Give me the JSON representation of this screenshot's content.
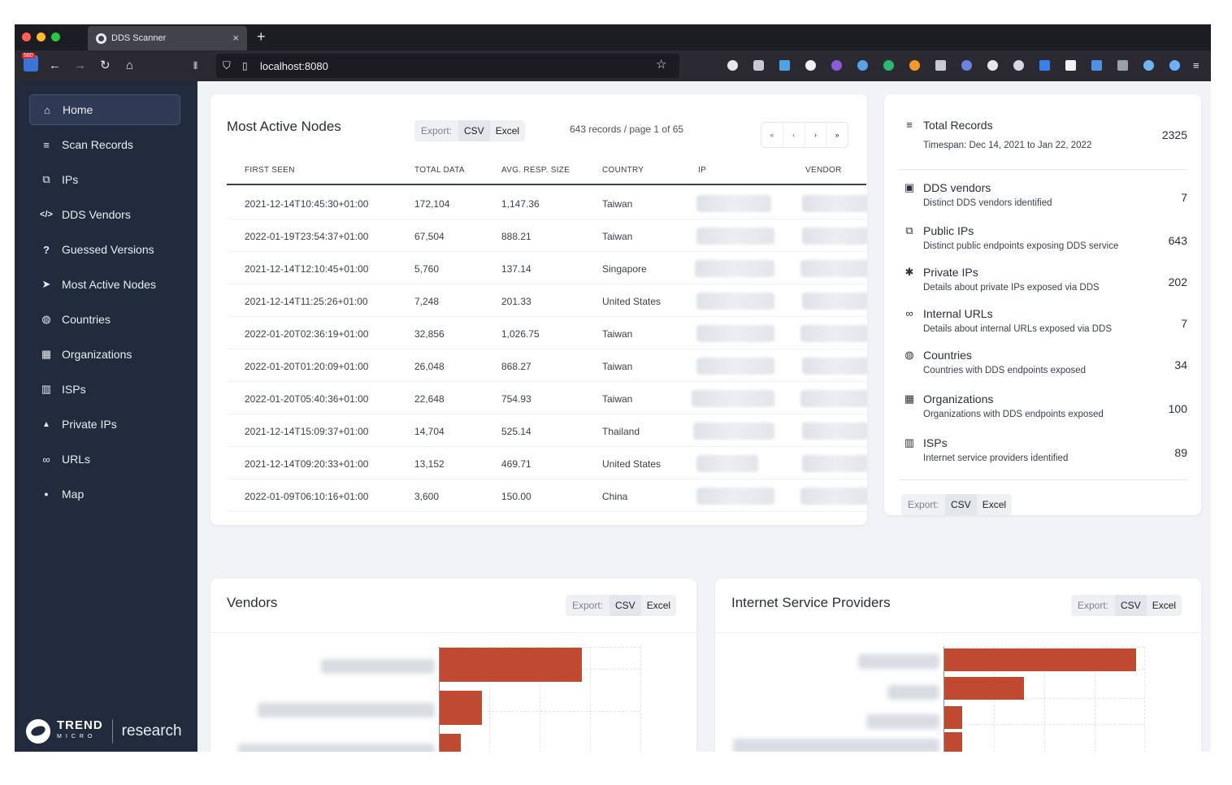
{
  "browser": {
    "tab_title": "DDS Scanner",
    "tab_close": "×",
    "new_tab": "+",
    "url": "localhost:8080",
    "badge": "580"
  },
  "sidebar": {
    "items": [
      {
        "label": "Home",
        "icon": "home-icon",
        "glyph": "⌂"
      },
      {
        "label": "Scan Records",
        "icon": "database-icon",
        "glyph": "≡"
      },
      {
        "label": "IPs",
        "icon": "network-icon",
        "glyph": "⧉"
      },
      {
        "label": "DDS Vendors",
        "icon": "code-icon",
        "glyph": "</>"
      },
      {
        "label": "Guessed Versions",
        "icon": "question-icon",
        "glyph": "?"
      },
      {
        "label": "Most Active Nodes",
        "icon": "rocket-icon",
        "glyph": "➤"
      },
      {
        "label": "Countries",
        "icon": "globe-icon",
        "glyph": "◍"
      },
      {
        "label": "Organizations",
        "icon": "building-icon",
        "glyph": "▦"
      },
      {
        "label": "ISPs",
        "icon": "industry-icon",
        "glyph": "▥"
      },
      {
        "label": "Private IPs",
        "icon": "lock-icon",
        "glyph": "▲"
      },
      {
        "label": "URLs",
        "icon": "link-icon",
        "glyph": "∞"
      },
      {
        "label": "Map",
        "icon": "map-pin-icon",
        "glyph": "●"
      }
    ],
    "logo": {
      "trend": "TREND",
      "micro": "MICRO",
      "research": "research"
    }
  },
  "nodes": {
    "title": "Most Active Nodes",
    "export_label": "Export:",
    "csv": "CSV",
    "excel": "Excel",
    "records": "643 records / page 1 of 65",
    "pager": [
      "«",
      "‹",
      "›",
      "»"
    ],
    "columns": [
      "FIRST SEEN",
      "TOTAL DATA",
      "AVG. RESP. SIZE",
      "COUNTRY",
      "IP",
      "VENDOR"
    ],
    "rows": [
      [
        "2021-12-14T10:45:30+01:00",
        "172,104",
        "1,147.36",
        "Taiwan"
      ],
      [
        "2022-01-19T23:54:37+01:00",
        "67,504",
        "888.21",
        "Taiwan"
      ],
      [
        "2021-12-14T12:10:45+01:00",
        "5,760",
        "137.14",
        "Singapore"
      ],
      [
        "2021-12-14T11:25:26+01:00",
        "7,248",
        "201.33",
        "United States"
      ],
      [
        "2022-01-20T02:36:19+01:00",
        "32,856",
        "1,026.75",
        "Taiwan"
      ],
      [
        "2022-01-20T01:20:09+01:00",
        "26,048",
        "868.27",
        "Taiwan"
      ],
      [
        "2022-01-20T05:40:36+01:00",
        "22,648",
        "754.93",
        "Taiwan"
      ],
      [
        "2021-12-14T15:09:37+01:00",
        "14,704",
        "525.14",
        "Thailand"
      ],
      [
        "2021-12-14T09:20:33+01:00",
        "13,152",
        "469.71",
        "United States"
      ],
      [
        "2022-01-09T06:10:16+01:00",
        "3,600",
        "150.00",
        "China"
      ]
    ]
  },
  "stats": {
    "items": [
      {
        "icon": "database-icon",
        "glyph": "≡",
        "title": "Total Records",
        "desc": "Timespan: Dec 14, 2021 to Jan 22, 2022",
        "value": "2325"
      },
      {
        "icon": "dev-icon",
        "glyph": "▣",
        "title": "DDS vendors",
        "desc": "Distinct DDS vendors identified",
        "value": "7"
      },
      {
        "icon": "network-icon",
        "glyph": "⧉",
        "title": "Public IPs",
        "desc": "Distinct public endpoints exposing DDS service",
        "value": "643"
      },
      {
        "icon": "spy-icon",
        "glyph": "✱",
        "title": "Private IPs",
        "desc": "Details about private IPs exposed via DDS",
        "value": "202"
      },
      {
        "icon": "link-icon",
        "glyph": "∞",
        "title": "Internal URLs",
        "desc": "Details about internal URLs exposed via DDS",
        "value": "7"
      },
      {
        "icon": "globe-icon",
        "glyph": "◍",
        "title": "Countries",
        "desc": "Countries with DDS endpoints exposed",
        "value": "34"
      },
      {
        "icon": "building-icon",
        "glyph": "▦",
        "title": "Organizations",
        "desc": "Organizations with DDS endpoints exposed",
        "value": "100"
      },
      {
        "icon": "industry-icon",
        "glyph": "▥",
        "title": "ISPs",
        "desc": "Internet service providers identified",
        "value": "89"
      }
    ],
    "export_label": "Export:",
    "csv": "CSV",
    "excel": "Excel"
  },
  "vendors": {
    "title": "Vendors",
    "export_label": "Export:",
    "csv": "CSV",
    "excel": "Excel"
  },
  "isps": {
    "title": "Internet Service Providers",
    "export_label": "Export:",
    "csv": "CSV",
    "excel": "Excel"
  },
  "chart_data": [
    {
      "type": "bar",
      "title": "Vendors",
      "orientation": "horizontal",
      "categories": [
        "",
        "",
        ""
      ],
      "values": [
        0.94,
        0.28,
        0.14
      ],
      "value_scale": "fraction of axis",
      "grid": true
    },
    {
      "type": "bar",
      "title": "Internet Service Providers",
      "orientation": "horizontal",
      "categories": [
        "",
        "",
        "",
        ""
      ],
      "values": [
        0.96,
        0.4,
        0.09,
        0.09
      ],
      "value_scale": "fraction of axis",
      "grid": true
    }
  ],
  "colors": {
    "bar": "#bf4a2f",
    "sidebar": "#222a3e",
    "accent_dark": "#1c1d22"
  }
}
